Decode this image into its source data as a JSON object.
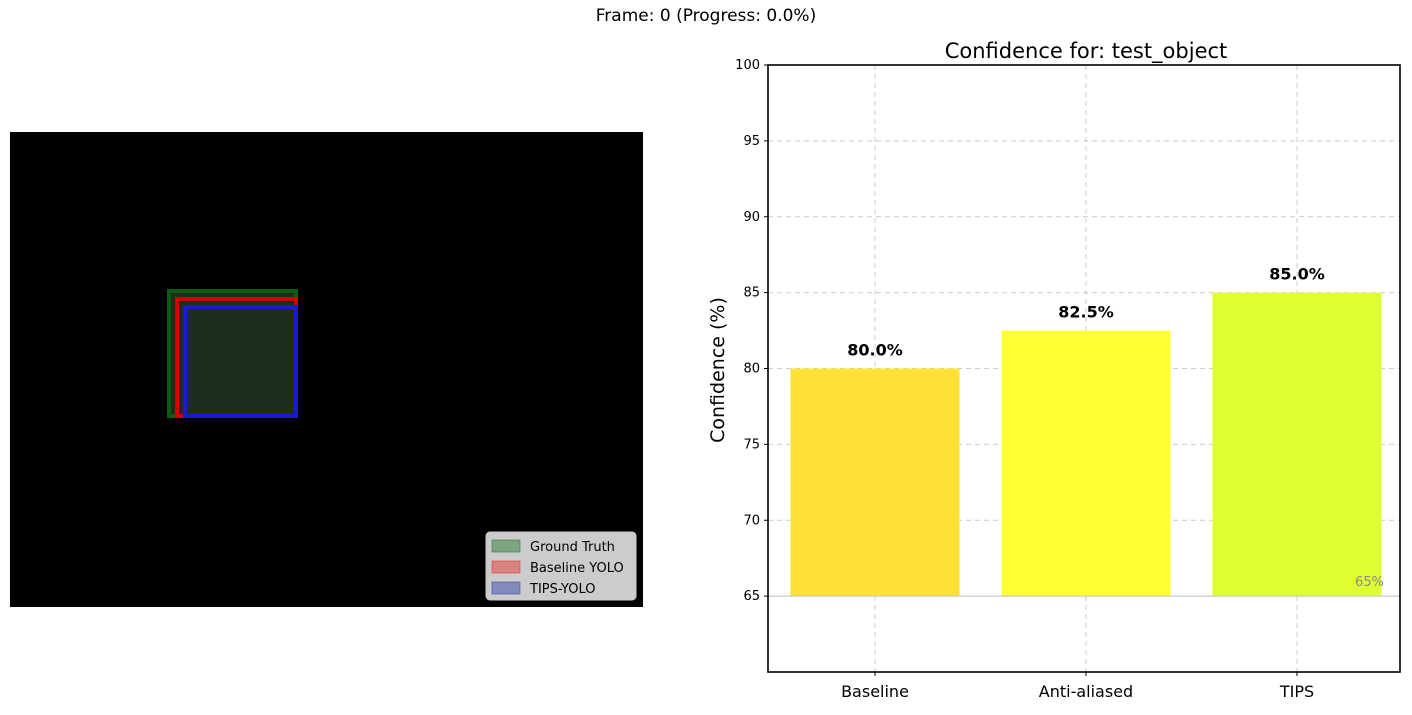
{
  "figure": {
    "suptitle": "Frame: 0 (Progress: 0.0%)"
  },
  "frame_view": {
    "background": "#000000",
    "legend": [
      {
        "label": "Ground Truth",
        "color": "#2e7d32"
      },
      {
        "label": "Baseline YOLO",
        "color": "#e53935"
      },
      {
        "label": "TIPS-YOLO",
        "color": "#3949ab"
      }
    ],
    "box_colors": {
      "ground_truth": "#0d5c12",
      "baseline": "#d60000",
      "tips": "#1a1ad6",
      "fill": "#1e2d1e"
    }
  },
  "chart_data": {
    "type": "bar",
    "title": "Confidence for: test_object",
    "xlabel": "",
    "ylabel": "Confidence (%)",
    "categories": [
      "Baseline",
      "Anti-aliased",
      "TIPS"
    ],
    "values": [
      80.0,
      82.5,
      85.0
    ],
    "data_labels": [
      "80.0%",
      "82.5%",
      "85.0%"
    ],
    "bar_colors": [
      "#ffe135",
      "#ffff33",
      "#e0ff33"
    ],
    "bar_base": 65,
    "ylim": [
      60,
      100
    ],
    "yticks": [
      "65",
      "70",
      "75",
      "80",
      "85",
      "90",
      "95",
      "100"
    ],
    "grid": true,
    "reference_line": {
      "value": 65,
      "label": "65%"
    }
  }
}
